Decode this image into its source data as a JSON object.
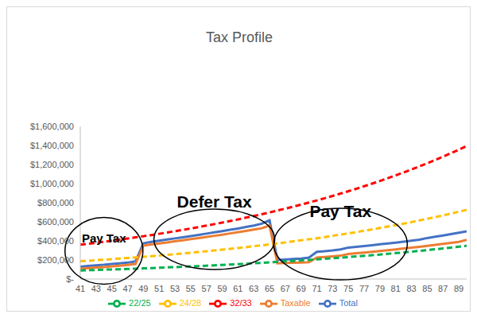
{
  "chart_data": {
    "type": "line",
    "title": "Tax Profile",
    "x": [
      41,
      42,
      43,
      44,
      45,
      46,
      47,
      48,
      49,
      50,
      51,
      52,
      53,
      54,
      55,
      56,
      57,
      58,
      59,
      60,
      61,
      62,
      63,
      64,
      65,
      66,
      67,
      68,
      69,
      70,
      71,
      72,
      73,
      74,
      75,
      76,
      77,
      78,
      79,
      80,
      81,
      82,
      83,
      84,
      85,
      86,
      87,
      88,
      89,
      90
    ],
    "xlim": [
      41,
      90
    ],
    "xticks": [
      41,
      43,
      45,
      47,
      49,
      51,
      53,
      55,
      57,
      59,
      61,
      63,
      65,
      67,
      69,
      71,
      73,
      75,
      77,
      79,
      81,
      83,
      85,
      87,
      89
    ],
    "ylim": [
      0,
      1600000
    ],
    "yticks": [
      {
        "value": 0,
        "label": "$-"
      },
      {
        "value": 200000,
        "label": "$200,000"
      },
      {
        "value": 400000,
        "label": "$400,000"
      },
      {
        "value": 600000,
        "label": "$600,000"
      },
      {
        "value": 800000,
        "label": "$800,000"
      },
      {
        "value": 1000000,
        "label": "$1,000,000"
      },
      {
        "value": 1200000,
        "label": "$1,200,000"
      },
      {
        "value": 1400000,
        "label": "$1,400,000"
      },
      {
        "value": 1600000,
        "label": "$1,600,000"
      }
    ],
    "grid": false,
    "legend": "bottom",
    "marker": "none",
    "series": [
      {
        "name": "Total",
        "color": "#4472c4",
        "line_style": "solid",
        "values": [
          130000,
          137000,
          144000,
          150000,
          158000,
          165000,
          172000,
          185000,
          375000,
          390000,
          402000,
          414000,
          426000,
          438000,
          450000,
          463000,
          476000,
          489000,
          502000,
          516000,
          530000,
          545000,
          560000,
          580000,
          615000,
          200000,
          205000,
          210000,
          215000,
          225000,
          285000,
          292000,
          300000,
          310000,
          330000,
          338000,
          346000,
          355000,
          364000,
          373000,
          382000,
          392000,
          402000,
          413000,
          430000,
          443000,
          457000,
          471000,
          485000,
          500000
        ]
      },
      {
        "name": "Taxable",
        "color": "#ed7d31",
        "line_style": "solid",
        "values": [
          108000,
          114000,
          120000,
          126000,
          133000,
          140000,
          147000,
          158000,
          350000,
          362000,
          373000,
          384000,
          395000,
          406000,
          418000,
          429000,
          441000,
          453000,
          465000,
          478000,
          491000,
          504000,
          518000,
          532000,
          560000,
          165000,
          168000,
          170000,
          172000,
          176000,
          225000,
          232000,
          238000,
          245000,
          262000,
          270000,
          278000,
          286000,
          294000,
          302000,
          311000,
          320000,
          329000,
          338000,
          348000,
          358000,
          368000,
          379000,
          390000,
          410000
        ]
      },
      {
        "name": "22/25",
        "color": "#00b050",
        "line_style": "dashed",
        "values": [
          90000,
          93000,
          95000,
          98000,
          101000,
          103000,
          106000,
          109000,
          112000,
          115000,
          119000,
          122000,
          125000,
          129000,
          133000,
          136000,
          140000,
          144000,
          148000,
          152000,
          156000,
          161000,
          165000,
          170000,
          175000,
          180000,
          185000,
          190000,
          195000,
          201000,
          206000,
          212000,
          218000,
          224000,
          230000,
          237000,
          243000,
          250000,
          257000,
          264000,
          272000,
          279000,
          287000,
          295000,
          304000,
          312000,
          321000,
          330000,
          339000,
          349000
        ]
      },
      {
        "name": "24/28",
        "color": "#ffc000",
        "line_style": "dashed",
        "values": [
          187000,
          192000,
          198000,
          203000,
          209000,
          215000,
          221000,
          227000,
          233000,
          240000,
          246000,
          254000,
          261000,
          268000,
          276000,
          283000,
          291000,
          300000,
          308000,
          316000,
          325000,
          334000,
          344000,
          353000,
          363000,
          373000,
          384000,
          395000,
          406000,
          417000,
          428000,
          440000,
          453000,
          466000,
          479000,
          492000,
          506000,
          520000,
          535000,
          550000,
          565000,
          581000,
          597000,
          614000,
          631000,
          649000,
          667000,
          686000,
          705000,
          725000
        ]
      },
      {
        "name": "32/33",
        "color": "#ff0000",
        "line_style": "dashed",
        "values": [
          360000,
          370000,
          380000,
          391000,
          402000,
          413000,
          425000,
          437000,
          449000,
          461000,
          474000,
          488000,
          501000,
          515000,
          530000,
          545000,
          560000,
          576000,
          592000,
          608000,
          625000,
          643000,
          661000,
          679000,
          698000,
          718000,
          738000,
          759000,
          780000,
          802000,
          824000,
          847000,
          871000,
          896000,
          921000,
          946000,
          973000,
          1000000,
          1028000,
          1057000,
          1087000,
          1117000,
          1148000,
          1181000,
          1214000,
          1248000,
          1283000,
          1319000,
          1356000,
          1394000
        ]
      }
    ],
    "annotations": [
      {
        "text": "Pay Tax",
        "x": 44,
        "y": 420000
      },
      {
        "text": "Defer Tax",
        "x": 58,
        "y": 800000
      },
      {
        "text": "Pay Tax",
        "x": 74,
        "y": 700000
      }
    ]
  }
}
